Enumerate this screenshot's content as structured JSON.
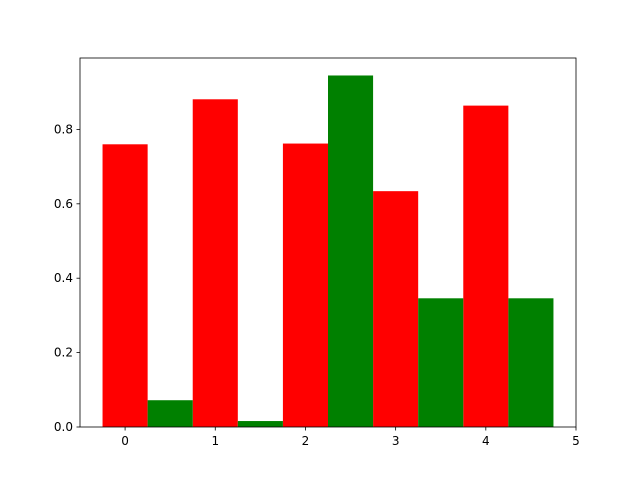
{
  "chart_data": {
    "type": "bar",
    "series": [
      {
        "color": "#ff0000",
        "x": [
          0,
          1,
          2,
          3,
          4
        ],
        "values": [
          0.76,
          0.881,
          0.762,
          0.634,
          0.864
        ]
      },
      {
        "color": "#008000",
        "x": [
          0.5,
          1.5,
          2.5,
          3.5,
          4.5
        ],
        "values": [
          0.072,
          0.016,
          0.945,
          0.346,
          0.346
        ]
      }
    ],
    "xlim": [
      -0.5,
      5.0
    ],
    "xticks": [
      0,
      1,
      2,
      3,
      4,
      5
    ],
    "ylim": [
      0,
      0.992
    ],
    "yticks": [
      {
        "value": 0,
        "label": "0.0"
      },
      0.2,
      0.4,
      0.6,
      0.8
    ]
  }
}
